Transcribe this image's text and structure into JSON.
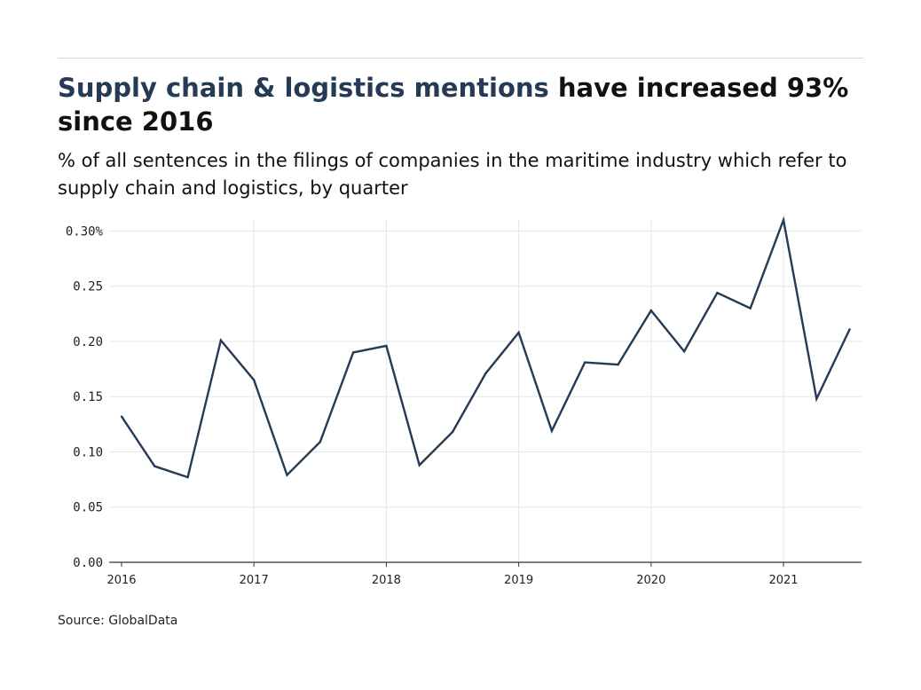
{
  "header": {
    "title_highlight": "Supply chain & logistics mentions",
    "title_rest": " have increased 93% since 2016",
    "subtitle": "% of all sentences in the filings of companies in the maritime industry which refer to supply chain and logistics, by quarter"
  },
  "source": "Source: GlobalData",
  "colors": {
    "line": "#243a55",
    "highlight": "#243a55",
    "grid": "#e6e6e6",
    "axis": "#333333"
  },
  "chart_data": {
    "type": "line",
    "title": "Supply chain & logistics mentions have increased 93% since 2016",
    "subtitle": "% of all sentences in the filings of companies in the maritime industry which refer to supply chain and logistics, by quarter",
    "xlabel": "",
    "ylabel": "",
    "x": [
      "2016-Q1",
      "2016-Q2",
      "2016-Q3",
      "2016-Q4",
      "2017-Q1",
      "2017-Q2",
      "2017-Q3",
      "2017-Q4",
      "2018-Q1",
      "2018-Q2",
      "2018-Q3",
      "2018-Q4",
      "2019-Q1",
      "2019-Q2",
      "2019-Q3",
      "2019-Q4",
      "2020-Q1",
      "2020-Q2",
      "2020-Q3",
      "2020-Q4",
      "2021-Q1",
      "2021-Q2",
      "2021-Q3"
    ],
    "series": [
      {
        "values": [
          0.132,
          0.087,
          0.077,
          0.201,
          0.165,
          0.079,
          0.109,
          0.19,
          0.196,
          0.088,
          0.118,
          0.171,
          0.208,
          0.119,
          0.181,
          0.179,
          0.228,
          0.191,
          0.244,
          0.23,
          0.31,
          0.148,
          0.211
        ]
      }
    ],
    "ylim": [
      0,
      0.31
    ],
    "yticks": [
      "0.00",
      "0.05",
      "0.10",
      "0.15",
      "0.20",
      "0.25",
      "0.30%"
    ],
    "ytick_values": [
      0,
      0.05,
      0.1,
      0.15,
      0.2,
      0.25,
      0.3
    ],
    "xticks": [
      "2016",
      "2017",
      "2018",
      "2019",
      "2020",
      "2021"
    ],
    "xtick_positions": [
      0,
      4,
      8,
      12,
      16,
      20
    ],
    "grid": true,
    "legend": "none"
  }
}
